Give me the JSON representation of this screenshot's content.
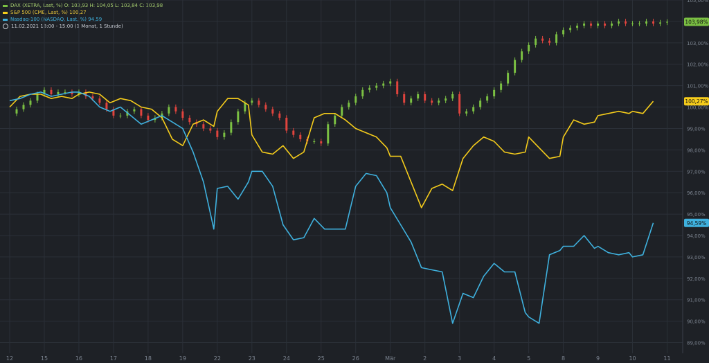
{
  "legend": {
    "dax": "DAX (XETRA, Last, %)  O: 103,93  H: 104,05  L: 103,84  C: 103,98",
    "sp": "S&P 500 (CME, Last, %)  100,27",
    "nasdaq": "Nasdaq-100 (NASDAQ, Last, %)  94,59",
    "period": "11.02.2021 18:00 - 15:00   (1 Monat, 1 Stunde)"
  },
  "colors": {
    "background": "#1e2126",
    "grid": "#2b3038",
    "axis_text": "#7c8490",
    "dax_up": "#7bc043",
    "dax_down": "#e0443e",
    "sp": "#f5cc1b",
    "nasdaq": "#3fb1de"
  },
  "chart_data": {
    "type": "line",
    "xlabel": "",
    "ylabel": "",
    "x_ticks": [
      "12",
      "15",
      "16",
      "17",
      "18",
      "19",
      "22",
      "23",
      "24",
      "25",
      "26",
      "Mär",
      "2",
      "3",
      "4",
      "5",
      "8",
      "9",
      "10",
      "11"
    ],
    "y_ticks": [
      "89,00%",
      "90,00%",
      "91,00%",
      "92,00%",
      "93,00%",
      "94,00%",
      "95,00%",
      "96,00%",
      "97,00%",
      "98,00%",
      "99,00%",
      "100,00%",
      "101,00%",
      "102,00%",
      "103,00%",
      "104,00%",
      "105,00%"
    ],
    "ylim": [
      88.5,
      105.0
    ],
    "grid": true,
    "legend_position": "top-left",
    "last_value_labels": {
      "dax": "103,98%",
      "sp": "100,27%",
      "nasdaq": "94,59%"
    },
    "series": [
      {
        "key": "dax",
        "name": "DAX (XETRA, Last, %)",
        "style": "candlestick",
        "x": [
          0,
          0.2,
          0.4,
          0.6,
          0.8,
          1.0,
          1.2,
          1.4,
          1.6,
          1.8,
          2.0,
          2.2,
          2.4,
          2.6,
          2.8,
          3.0,
          3.2,
          3.4,
          3.6,
          3.8,
          4.0,
          4.2,
          4.4,
          4.6,
          4.8,
          5.0,
          5.2,
          5.4,
          5.6,
          5.8,
          6.0,
          6.2,
          6.4,
          6.6,
          6.8,
          7.0,
          7.2,
          7.4,
          7.6,
          7.8,
          8.0,
          8.2,
          8.4,
          8.6,
          8.8,
          9.0,
          9.2,
          9.4,
          9.6,
          9.8,
          10.0,
          10.2,
          10.4,
          10.6,
          10.8,
          11.0,
          11.2,
          11.4,
          11.6,
          11.8,
          12.0,
          12.2,
          12.4,
          12.6,
          12.8,
          13.0,
          13.2,
          13.4,
          13.6,
          13.8,
          14.0,
          14.2,
          14.4,
          14.6,
          14.8,
          15.0,
          15.2,
          15.4,
          15.6,
          15.8,
          16.0,
          16.2,
          16.4,
          16.6,
          16.8,
          17.0,
          17.2,
          17.4,
          17.6,
          17.8,
          18.0,
          18.2,
          18.4,
          18.6,
          18.8,
          19.0
        ],
        "values": [
          99.7,
          99.9,
          100.1,
          100.3,
          100.6,
          100.8,
          100.6,
          100.7,
          100.7,
          100.6,
          100.7,
          100.5,
          100.4,
          100.2,
          99.9,
          99.6,
          99.6,
          99.8,
          99.9,
          99.6,
          99.4,
          99.5,
          99.7,
          100.0,
          99.8,
          99.5,
          99.3,
          99.2,
          99.0,
          98.9,
          98.6,
          98.8,
          99.3,
          99.8,
          100.2,
          100.3,
          100.1,
          99.9,
          99.7,
          99.5,
          98.9,
          98.7,
          98.5,
          98.4,
          98.4,
          98.3,
          99.2,
          99.6,
          100.0,
          100.2,
          100.5,
          100.8,
          100.9,
          101.0,
          101.1,
          101.2,
          100.6,
          100.2,
          100.4,
          100.6,
          100.3,
          100.2,
          100.3,
          100.4,
          100.6,
          99.7,
          99.8,
          100.0,
          100.3,
          100.5,
          100.8,
          101.1,
          101.6,
          102.2,
          102.6,
          102.9,
          103.2,
          103.1,
          103.0,
          103.4,
          103.6,
          103.7,
          103.8,
          103.9,
          103.8,
          103.9,
          103.8,
          103.9,
          104.0,
          103.9,
          103.9,
          103.9,
          104.0,
          103.9,
          103.95,
          103.98
        ]
      },
      {
        "key": "sp",
        "name": "S&P 500 (CME, Last, %)",
        "style": "line",
        "x": [
          0,
          0.3,
          0.6,
          0.9,
          1.2,
          1.5,
          1.8,
          2.0,
          2.3,
          2.6,
          2.9,
          3.2,
          3.5,
          3.8,
          4.1,
          4.4,
          4.7,
          5.0,
          5.3,
          5.6,
          5.9,
          6.0,
          6.3,
          6.6,
          6.9,
          7.0,
          7.3,
          7.6,
          7.9,
          8.2,
          8.5,
          8.8,
          9.1,
          9.4,
          9.7,
          10.0,
          10.3,
          10.6,
          10.9,
          11.0,
          11.3,
          11.6,
          11.9,
          12.2,
          12.5,
          12.8,
          13.1,
          13.4,
          13.7,
          14.0,
          14.3,
          14.6,
          14.9,
          15.0,
          15.3,
          15.6,
          15.9,
          16.0,
          16.3,
          16.6,
          16.9,
          17.0,
          17.3,
          17.6,
          17.9,
          18.0,
          18.3,
          18.6
        ],
        "values": [
          100.0,
          100.5,
          100.6,
          100.6,
          100.4,
          100.5,
          100.4,
          100.6,
          100.7,
          100.6,
          100.2,
          100.4,
          100.3,
          100.0,
          99.9,
          99.5,
          98.5,
          98.2,
          99.2,
          99.4,
          99.1,
          99.8,
          100.4,
          100.4,
          100.1,
          98.7,
          97.9,
          97.8,
          98.2,
          97.6,
          97.9,
          99.5,
          99.7,
          99.7,
          99.4,
          99.0,
          98.8,
          98.6,
          98.1,
          97.7,
          97.7,
          96.5,
          95.3,
          96.2,
          96.4,
          96.1,
          97.6,
          98.2,
          98.6,
          98.4,
          97.9,
          97.8,
          97.9,
          98.6,
          98.1,
          97.6,
          97.7,
          98.6,
          99.4,
          99.2,
          99.3,
          99.6,
          99.7,
          99.8,
          99.7,
          99.8,
          99.7,
          100.27
        ]
      },
      {
        "key": "nasdaq",
        "name": "Nasdaq-100 (NASDAQ, Last, %)",
        "style": "line",
        "x": [
          0,
          0.3,
          0.6,
          0.9,
          1.2,
          1.5,
          1.8,
          2.0,
          2.3,
          2.6,
          2.9,
          3.2,
          3.5,
          3.8,
          4.1,
          4.4,
          4.7,
          5.0,
          5.3,
          5.6,
          5.9,
          6.0,
          6.3,
          6.6,
          6.9,
          7.0,
          7.3,
          7.6,
          7.9,
          8.2,
          8.5,
          8.8,
          9.1,
          9.4,
          9.7,
          10.0,
          10.3,
          10.6,
          10.9,
          11.0,
          11.3,
          11.6,
          11.9,
          12.2,
          12.5,
          12.8,
          13.1,
          13.4,
          13.7,
          14.0,
          14.3,
          14.6,
          14.9,
          15.0,
          15.3,
          15.6,
          15.9,
          16.0,
          16.3,
          16.6,
          16.9,
          17.0,
          17.3,
          17.6,
          17.9,
          18.0,
          18.3,
          18.6
        ],
        "values": [
          100.3,
          100.4,
          100.6,
          100.7,
          100.5,
          100.6,
          100.7,
          100.7,
          100.5,
          100.0,
          99.8,
          100.0,
          99.6,
          99.2,
          99.4,
          99.6,
          99.3,
          99.0,
          97.9,
          96.5,
          94.3,
          96.2,
          96.3,
          95.7,
          96.5,
          97.0,
          97.0,
          96.3,
          94.5,
          93.8,
          93.9,
          94.8,
          94.3,
          94.3,
          94.3,
          96.3,
          96.9,
          96.8,
          96.0,
          95.3,
          94.5,
          93.7,
          92.5,
          92.4,
          92.3,
          89.9,
          91.3,
          91.1,
          92.1,
          92.7,
          92.3,
          92.3,
          90.4,
          90.2,
          89.9,
          93.1,
          93.3,
          93.5,
          93.5,
          94.0,
          93.4,
          93.5,
          93.2,
          93.1,
          93.2,
          93.0,
          93.1,
          94.59
        ]
      }
    ]
  }
}
